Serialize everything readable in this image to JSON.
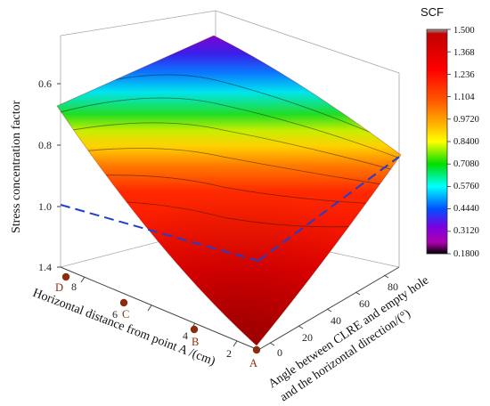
{
  "chart_data": {
    "type": "surface",
    "zlabel": "Stress concentration factor",
    "xlabel": "Horizontal distance from point A /(cm)",
    "ylabel_line1": "Angle between CLRE and empty hole",
    "ylabel_line2": "and the horizontal direction/(°)",
    "z_ticks": [
      "0.6",
      "0.8",
      "1.0",
      "1.4"
    ],
    "x_ticks": [
      "2",
      "4",
      "6",
      "8"
    ],
    "y_ticks": [
      "0",
      "20",
      "40",
      "60",
      "80"
    ],
    "colorbar": {
      "title": "SCF",
      "labels": [
        "1.500",
        "1.368",
        "1.236",
        "1.104",
        "0.9720",
        "0.8400",
        "0.7080",
        "0.5760",
        "0.4440",
        "0.3120",
        "0.1800"
      ],
      "range": [
        0.18,
        1.5
      ]
    },
    "reference_line": {
      "z": 1.0,
      "style": "dashed",
      "color": "#1f3fcf"
    },
    "points": [
      {
        "label": "A",
        "x": 0
      },
      {
        "label": "B",
        "x": 3
      },
      {
        "label": "C",
        "x": 6
      },
      {
        "label": "D",
        "x": 9
      }
    ],
    "surface_samples": [
      {
        "x": 0,
        "angle": 0,
        "scf": 1.5
      },
      {
        "x": 0,
        "angle": 90,
        "scf": 0.95
      },
      {
        "x": 9,
        "angle": 0,
        "scf": 0.6
      },
      {
        "x": 9,
        "angle": 90,
        "scf": 0.2
      }
    ]
  }
}
